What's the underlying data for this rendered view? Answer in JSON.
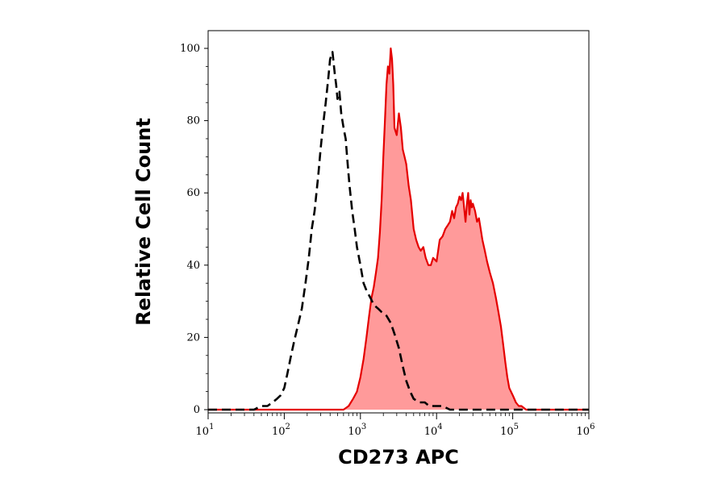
{
  "chart_data": {
    "type": "area",
    "xlabel": "CD273 APC",
    "ylabel": "Relative Cell Count",
    "x_scale": "log",
    "xlim": [
      10,
      1000000
    ],
    "ylim": [
      0,
      100
    ],
    "x_ticks": [
      {
        "value": 10,
        "base": "10",
        "exp": "1"
      },
      {
        "value": 100,
        "base": "10",
        "exp": "2"
      },
      {
        "value": 1000,
        "base": "10",
        "exp": "3"
      },
      {
        "value": 10000,
        "base": "10",
        "exp": "4"
      },
      {
        "value": 100000,
        "base": "10",
        "exp": "5"
      },
      {
        "value": 1000000,
        "base": "10",
        "exp": "6"
      }
    ],
    "y_ticks": [
      0,
      20,
      40,
      60,
      80,
      100
    ],
    "grid": false,
    "series": [
      {
        "style": "dashed",
        "color": "#000000",
        "x": [
          10,
          40,
          50,
          60,
          70,
          80,
          90,
          100,
          110,
          120,
          135,
          150,
          170,
          190,
          210,
          230,
          250,
          280,
          300,
          320,
          350,
          380,
          400,
          430,
          460,
          480,
          500,
          530,
          560,
          600,
          640,
          680,
          720,
          780,
          840,
          900,
          1000,
          1100,
          1200,
          1350,
          1500,
          1700,
          1900,
          2200,
          2500,
          2800,
          3200,
          3600,
          4000,
          4500,
          5000,
          6000,
          7000,
          8000,
          10000,
          12000,
          15000,
          20000,
          100000,
          1000000
        ],
        "y": [
          0,
          0,
          1,
          1,
          2,
          3,
          4,
          6,
          10,
          14,
          19,
          23,
          28,
          35,
          42,
          50,
          55,
          65,
          72,
          78,
          85,
          92,
          97,
          99,
          93,
          90,
          86,
          88,
          82,
          78,
          75,
          68,
          62,
          55,
          50,
          45,
          40,
          35,
          33,
          31,
          29,
          28,
          27,
          26,
          24,
          21,
          17,
          12,
          8,
          5,
          3,
          2,
          2,
          1,
          1,
          1,
          0,
          0,
          0,
          0
        ]
      },
      {
        "style": "filled",
        "color": "#e50000",
        "fill": "#ff9a9a",
        "x": [
          10,
          600,
          700,
          800,
          900,
          1000,
          1100,
          1200,
          1300,
          1400,
          1500,
          1600,
          1700,
          1800,
          1900,
          2000,
          2100,
          2200,
          2300,
          2400,
          2500,
          2600,
          2700,
          2800,
          3000,
          3200,
          3400,
          3600,
          3800,
          4000,
          4300,
          4600,
          5000,
          5400,
          5800,
          6200,
          6700,
          7200,
          7800,
          8400,
          9000,
          10000,
          11000,
          12000,
          13000,
          14000,
          15000,
          16000,
          17000,
          18000,
          19000,
          20000,
          21000,
          22000,
          23000,
          24000,
          25000,
          26000,
          27000,
          28000,
          29000,
          30000,
          32000,
          34000,
          36000,
          38000,
          40000,
          43000,
          46000,
          50000,
          55000,
          60000,
          65000,
          70000,
          75000,
          80000,
          85000,
          90000,
          100000,
          110000,
          120000,
          130000,
          150000,
          200000,
          1000000
        ],
        "y": [
          0,
          0,
          1,
          3,
          5,
          9,
          14,
          20,
          26,
          31,
          34,
          38,
          42,
          49,
          58,
          70,
          80,
          90,
          95,
          93,
          100,
          97,
          90,
          78,
          76,
          82,
          78,
          72,
          70,
          68,
          62,
          58,
          50,
          47,
          45,
          44,
          45,
          42,
          40,
          40,
          42,
          41,
          47,
          48,
          50,
          51,
          52,
          55,
          53,
          56,
          57,
          59,
          58,
          60,
          56,
          52,
          57,
          60,
          54,
          58,
          56,
          57,
          55,
          52,
          53,
          50,
          47,
          44,
          41,
          38,
          35,
          31,
          27,
          23,
          18,
          13,
          9,
          6,
          4,
          2,
          1,
          1,
          0,
          0,
          0
        ]
      }
    ]
  }
}
